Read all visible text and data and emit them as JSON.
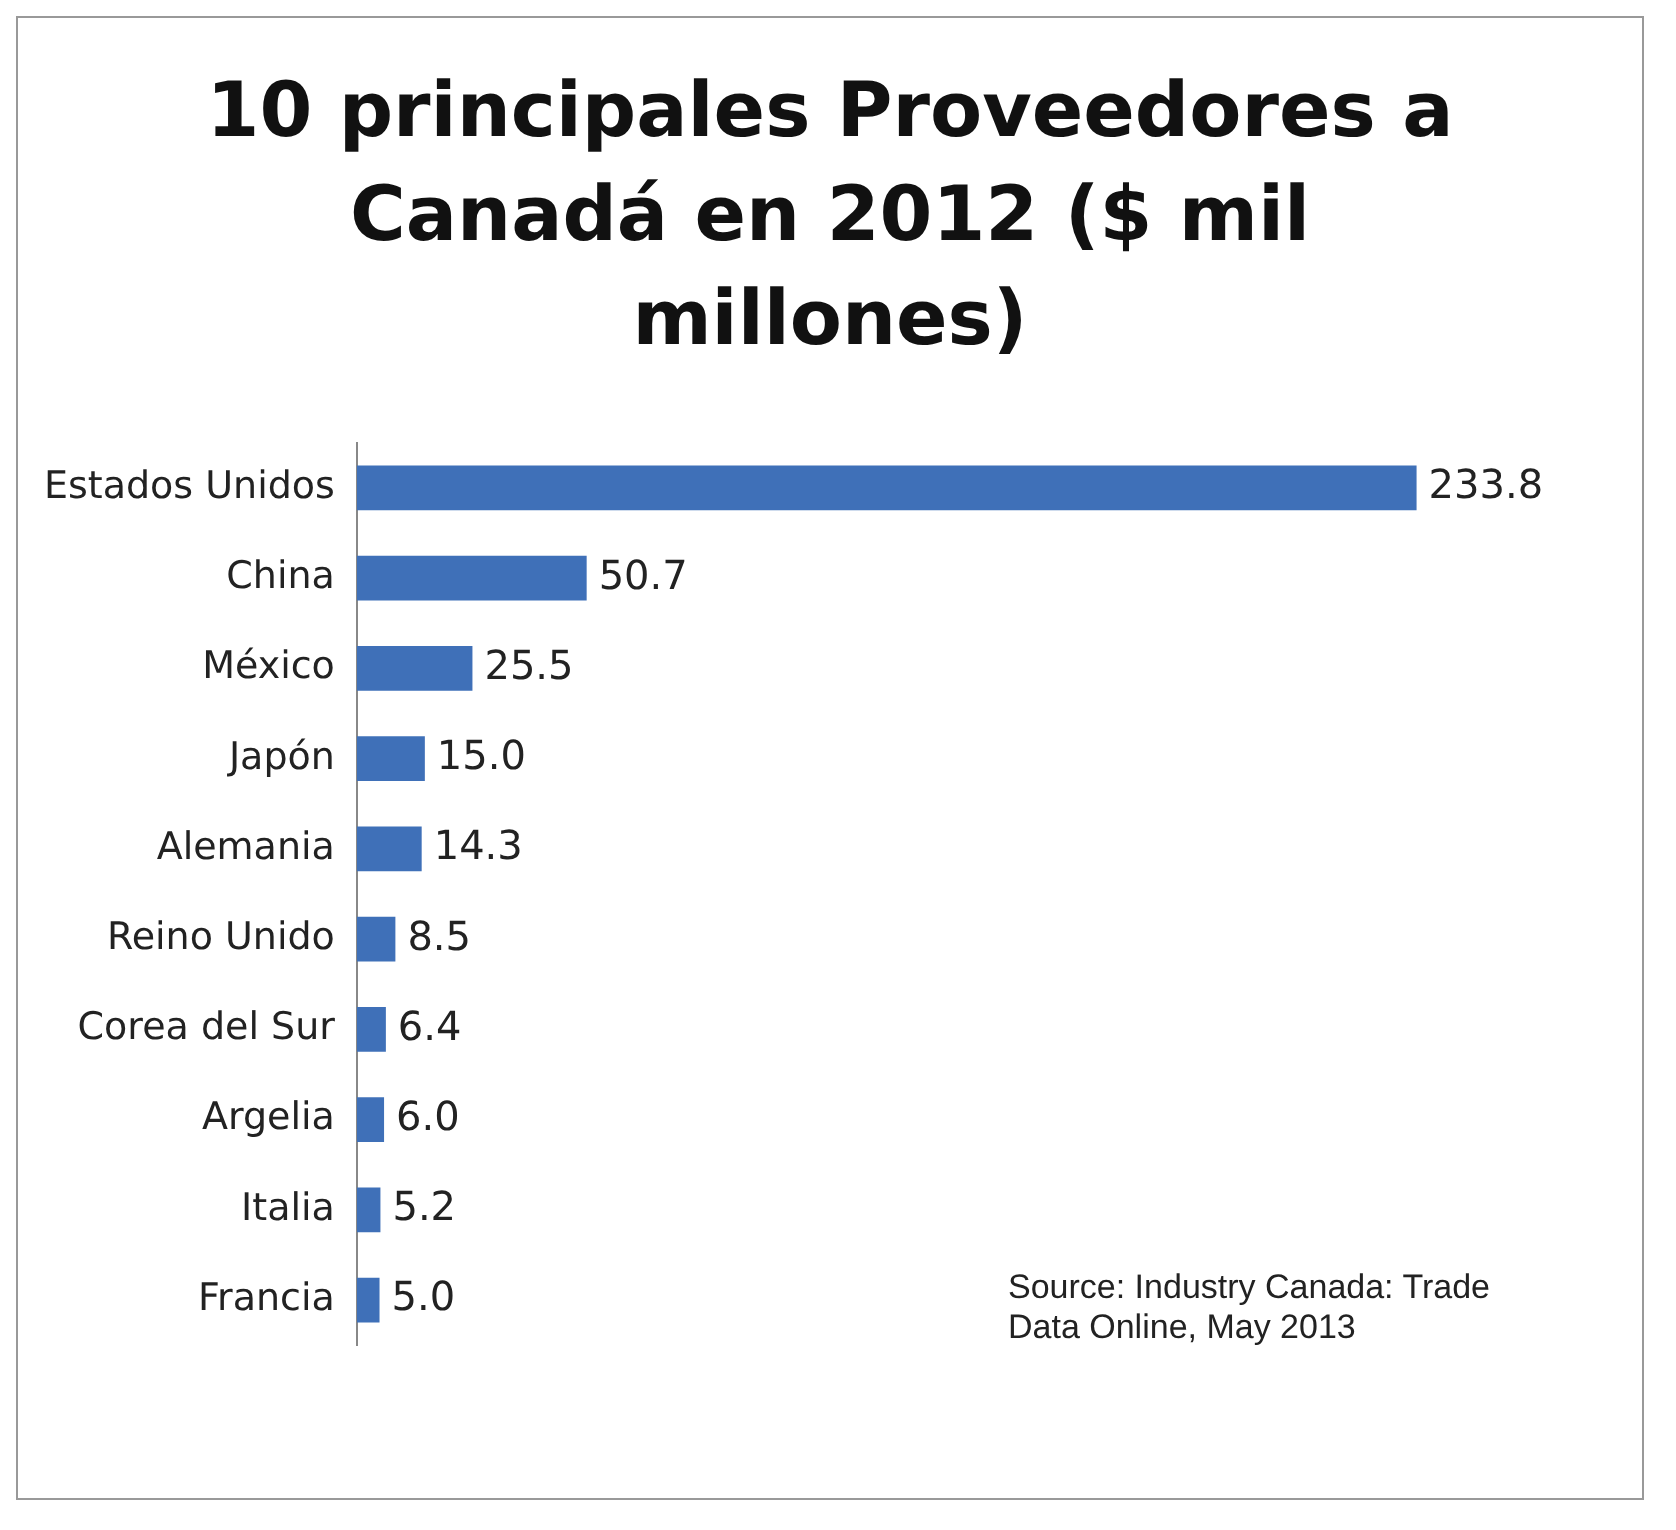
{
  "chart_data": {
    "type": "bar",
    "orientation": "horizontal",
    "title": "10 principales Proveedores a Canadá en 2012 ($ mil millones)",
    "categories": [
      "Estados Unidos",
      "China",
      "México",
      "Japón",
      "Alemania",
      "Reino Unido",
      "Corea del Sur",
      "Argelia",
      "Italia",
      "Francia"
    ],
    "values": [
      233.8,
      50.7,
      25.5,
      15.0,
      14.3,
      8.5,
      6.4,
      6.0,
      5.2,
      5.0
    ],
    "value_labels": [
      "233.8",
      "50.7",
      "25.5",
      "15.0",
      "14.3",
      "8.5",
      "6.4",
      "6.0",
      "5.2",
      "5.0"
    ],
    "color": "#3f70b8",
    "annotations": [
      "Source: Industry Canada: Trade Data Online, May 2013"
    ]
  }
}
